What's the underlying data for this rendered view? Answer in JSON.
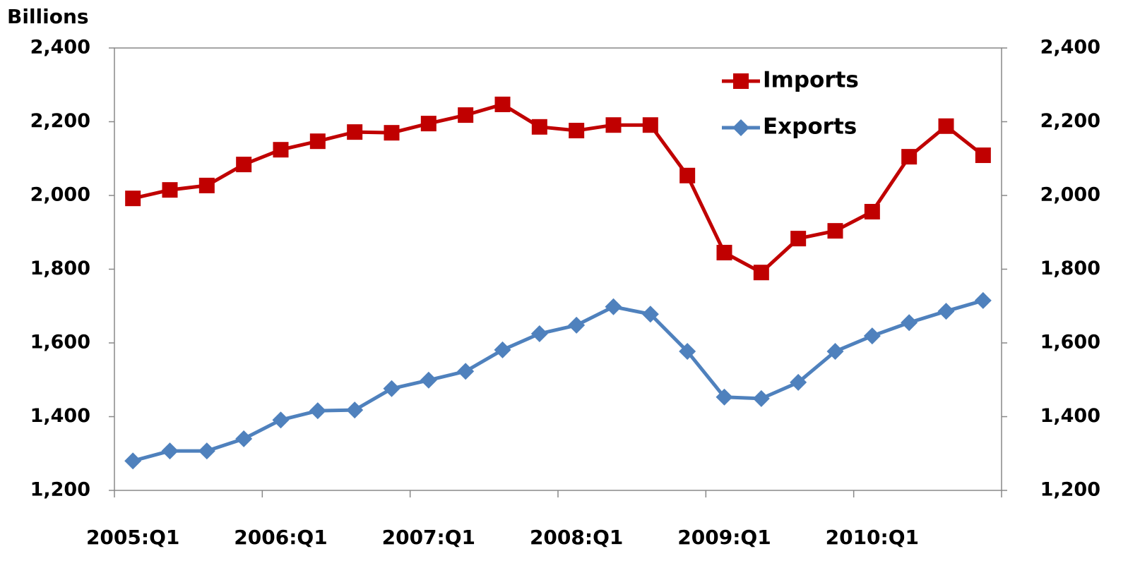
{
  "chart_data": {
    "type": "line",
    "y_label": "Billions",
    "categories": [
      "2005:Q1",
      null,
      null,
      null,
      "2006:Q1",
      null,
      null,
      null,
      "2007:Q1",
      null,
      null,
      null,
      "2008:Q1",
      null,
      null,
      null,
      "2009:Q1",
      null,
      null,
      null,
      "2010:Q1",
      null,
      null,
      null
    ],
    "series": [
      {
        "name": "Imports",
        "color": "#c00000",
        "marker": "square",
        "values": [
          1992,
          2015,
          2027,
          2084,
          2124,
          2147,
          2172,
          2170,
          2195,
          2218,
          2247,
          2186,
          2176,
          2191,
          2191,
          2054,
          1845,
          1791,
          1883,
          1904,
          1956,
          2105,
          2188,
          2109
        ]
      },
      {
        "name": "Exports",
        "color": "#4f81bd",
        "marker": "diamond",
        "values": [
          1280,
          1307,
          1307,
          1340,
          1391,
          1416,
          1418,
          1476,
          1499,
          1523,
          1581,
          1625,
          1648,
          1698,
          1678,
          1577,
          1453,
          1449,
          1493,
          1577,
          1619,
          1655,
          1686,
          1715
        ]
      }
    ],
    "ylim": [
      1200,
      2400
    ],
    "yticks": [
      {
        "value": 1200,
        "label": "1,200"
      },
      {
        "value": 1400,
        "label": "1,400"
      },
      {
        "value": 1600,
        "label": "1,600"
      },
      {
        "value": 1800,
        "label": "1,800"
      },
      {
        "value": 2000,
        "label": "2,000"
      },
      {
        "value": 2200,
        "label": "2,200"
      },
      {
        "value": 2400,
        "label": "2,400"
      }
    ],
    "y2lim": [
      1200,
      2400
    ],
    "y2ticks": [
      {
        "value": 1200,
        "label": "1,200"
      },
      {
        "value": 1400,
        "label": "1,400"
      },
      {
        "value": 1600,
        "label": "1,600"
      },
      {
        "value": 1800,
        "label": "1,800"
      },
      {
        "value": 2000,
        "label": "2,000"
      },
      {
        "value": 2200,
        "label": "2,200"
      },
      {
        "value": 2400,
        "label": "2,400"
      }
    ],
    "legend": "upper right",
    "grid": false
  }
}
